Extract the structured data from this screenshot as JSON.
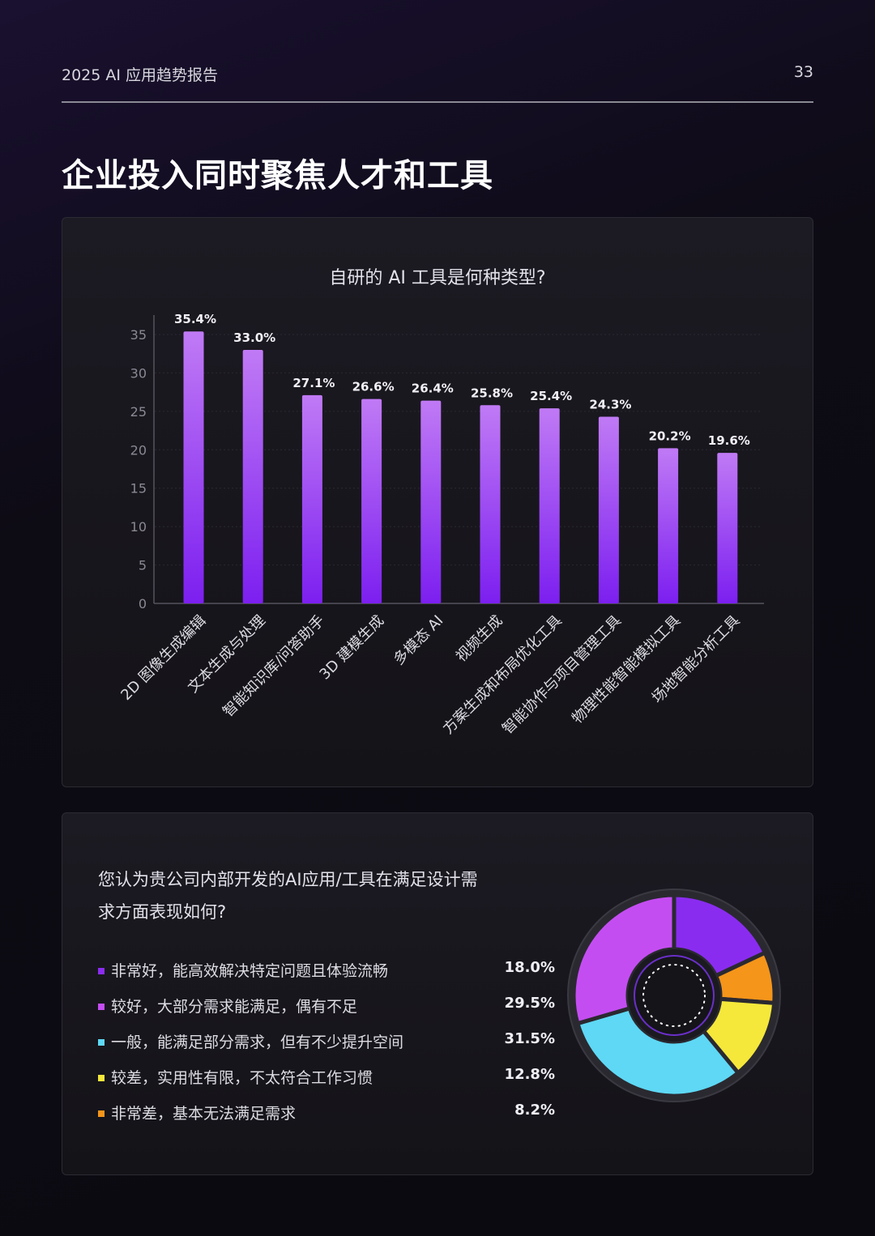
{
  "header": {
    "title": "2025 AI 应用趋势报告",
    "page_number": "33"
  },
  "main_title": "企业投入同时聚焦人才和工具",
  "chart_data": [
    {
      "type": "bar",
      "title": "自研的 AI 工具是何种类型?",
      "categories": [
        "2D 图像生成编辑",
        "文本生成与处理",
        "智能知识库/问答助手",
        "3D 建模生成",
        "多模态 AI",
        "视频生成",
        "方案生成和布局优化工具",
        "智能协作与项目管理工具",
        "物理性能智能模拟工具",
        "场地智能分析工具"
      ],
      "values": [
        35.4,
        33.0,
        27.1,
        26.6,
        26.4,
        25.8,
        25.4,
        24.3,
        20.2,
        19.6
      ],
      "value_labels": [
        "35.4%",
        "33.0%",
        "27.1%",
        "26.6%",
        "26.4%",
        "25.8%",
        "25.4%",
        "24.3%",
        "20.2%",
        "19.6%"
      ],
      "yticks": [
        "0",
        "5",
        "10",
        "15",
        "20",
        "25",
        "30",
        "35"
      ],
      "ylim": [
        0,
        37.5
      ],
      "grid": true,
      "colors": {
        "bar_top": "#c07af5",
        "bar_bottom": "#7c1ff0"
      }
    },
    {
      "type": "pie",
      "title": "您认为贵公司内部开发的AI应用/工具在满足设计需求方面表现如何?",
      "title_lines": [
        "您认为贵公司内部开发的AI应用/工具在满足设计需",
        "求方面表现如何?"
      ],
      "categories": [
        "非常好，能高效解决特定问题且体验流畅",
        "较好，大部分需求能满足，偶有不足",
        "一般，能满足部分需求，但有不少提升空间",
        "较差，实用性有限，不太符合工作习惯",
        "非常差，基本无法满足需求"
      ],
      "values": [
        18.0,
        29.5,
        31.5,
        12.8,
        8.2
      ],
      "value_labels": [
        "18.0%",
        "29.5%",
        "31.5%",
        "12.8%",
        "8.2%"
      ],
      "colors": [
        "#8a2cf0",
        "#c44df2",
        "#5ed8f5",
        "#f5e83a",
        "#f5951a"
      ],
      "display_order": [
        0,
        4,
        3,
        2,
        1
      ],
      "legend_position": "left"
    }
  ]
}
